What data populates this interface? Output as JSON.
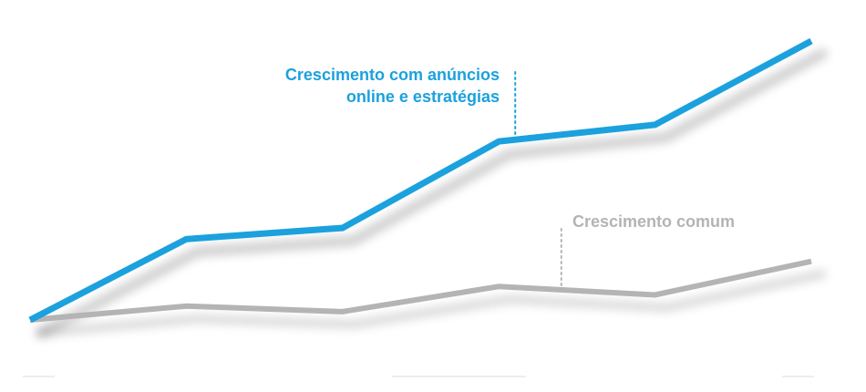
{
  "chart_data": {
    "type": "line",
    "x": [
      0,
      1,
      2,
      3,
      4,
      5
    ],
    "xlim": [
      0,
      5
    ],
    "ylim": [
      0,
      100
    ],
    "grid": false,
    "legend": "none",
    "series": [
      {
        "name": "Crescimento com anúncios online e estratégias",
        "color": "#1ba1dd",
        "values": [
          0,
          29,
          33,
          64,
          70,
          100
        ]
      },
      {
        "name": "Crescimento comum",
        "color": "#b4b4b4",
        "values": [
          0,
          5,
          3,
          12,
          9,
          21
        ]
      }
    ],
    "annotations": [
      {
        "series": 0,
        "point": 3,
        "lines": [
          "Crescimento com anúncios",
          "online e estratégias"
        ],
        "color": "#1ba1dd"
      },
      {
        "series": 1,
        "point": 3.4,
        "lines": [
          "Crescimento comum"
        ],
        "color": "#b4b4b4"
      }
    ]
  }
}
